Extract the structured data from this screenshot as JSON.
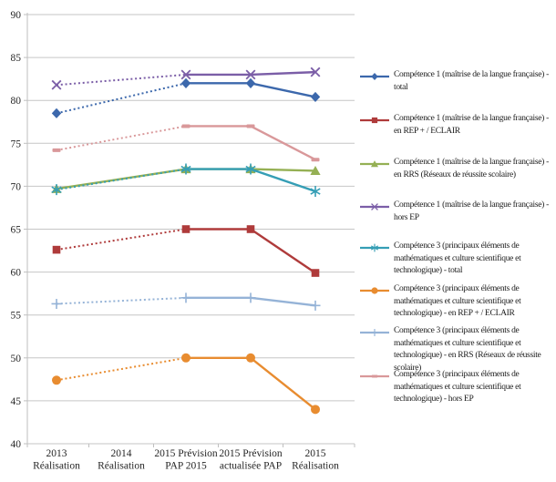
{
  "chart_data": {
    "type": "line",
    "title": "",
    "categories": [
      [
        "2013",
        "Réalisation"
      ],
      [
        "2014",
        "Réalisation"
      ],
      [
        "2015 Prévision",
        "PAP 2015"
      ],
      [
        "2015 Prévision",
        "actualisée PAP"
      ],
      [
        "2015",
        "Réalisation"
      ]
    ],
    "y_axis": {
      "min": 40,
      "max": 90,
      "step": 5,
      "ticks": [
        40,
        45,
        50,
        55,
        60,
        65,
        70,
        75,
        80,
        85,
        90
      ]
    },
    "grid": true,
    "legend_position": "right",
    "line_style_note": "dotted between 2013 réalisation and 2015 prévision PAP, solid afterwards",
    "series": [
      {
        "name": "Compétence 1 (maîtrise de la langue française) - total",
        "color": "#3C68AC",
        "marker": "diamond",
        "line_style": "dotted-then-solid",
        "values": [
          78.5,
          null,
          82,
          82,
          80.4
        ]
      },
      {
        "name": "Compétence 1 (maîtrise de la langue française) - en REP + /  ECLAIR",
        "color": "#AF3B3B",
        "marker": "square",
        "line_style": "dotted-then-solid",
        "values": [
          62.6,
          null,
          65,
          65,
          59.9
        ]
      },
      {
        "name": "Compétence 1 (maîtrise de la langue française) - en RRS (Réseaux de réussite scolaire)",
        "color": "#95B054",
        "marker": "triangle",
        "line_style": "solid",
        "values": [
          69.7,
          null,
          72,
          72,
          71.8
        ]
      },
      {
        "name": "Compétence 1 (maîtrise de la langue française) - hors EP",
        "color": "#7B5EA7",
        "marker": "x",
        "line_style": "dotted-then-solid",
        "values": [
          81.8,
          null,
          83,
          83,
          83.3
        ]
      },
      {
        "name": "Compétence 3 (principaux éléments de mathématiques et culture scientifique et technologique) - total",
        "color": "#359EB5",
        "marker": "asterisk",
        "line_style": "dotted-then-solid",
        "values": [
          69.6,
          null,
          72,
          72,
          69.4
        ]
      },
      {
        "name": "Compétence 3 (principaux éléments de mathématiques et culture scientifique et technologique) - en REP + /  ECLAIR",
        "color": "#E88C30",
        "marker": "circle",
        "line_style": "dotted-then-solid",
        "values": [
          47.4,
          null,
          50,
          50,
          44
        ]
      },
      {
        "name": "Compétence 3 (principaux éléments de mathématiques et culture scientifique et technologique) - en RRS (Réseaux de réussite scolaire)",
        "color": "#95B3D7",
        "marker": "plus",
        "line_style": "dotted-then-solid",
        "values": [
          56.3,
          null,
          57,
          57,
          56.1
        ]
      },
      {
        "name": "Compétence 3 (principaux éléments de mathématiques et culture scientifique et technologique) - hors EP",
        "color": "#D9989A",
        "marker": "dash",
        "line_style": "dotted-then-solid",
        "values": [
          74.2,
          null,
          77,
          77,
          73.1
        ]
      }
    ],
    "colors": {
      "gridline": "#C6C6C6",
      "axis": "#BFBFBF",
      "tick_label": "#262626",
      "legend_text": "#1a1a1a",
      "background": "#ffffff"
    }
  }
}
